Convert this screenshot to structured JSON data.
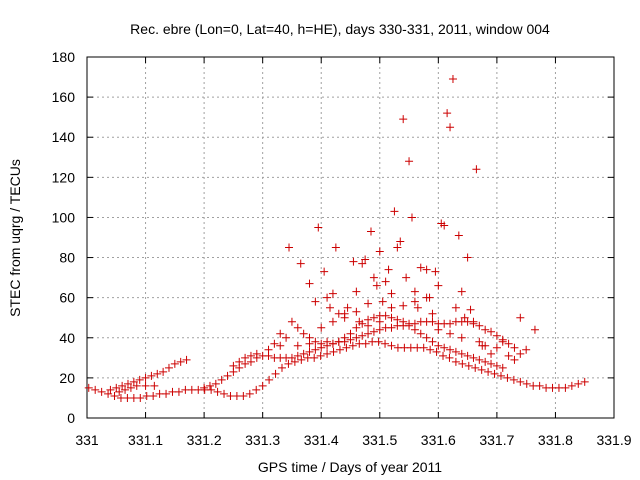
{
  "chart_data": {
    "type": "scatter",
    "title": "Rec. ebre (Lon=0, Lat=40, h=HE), days 330-331, 2011, window 004",
    "xlabel": "GPS time / Days of year 2011",
    "ylabel": "STEC from uqrg / TECUs",
    "xlim": [
      331,
      331.9
    ],
    "ylim": [
      0,
      180
    ],
    "xticks": [
      "331",
      "331.1",
      "331.2",
      "331.3",
      "331.4",
      "331.5",
      "331.6",
      "331.7",
      "331.8",
      "331.9"
    ],
    "yticks": [
      "0",
      "20",
      "40",
      "60",
      "80",
      "100",
      "120",
      "140",
      "160",
      "180"
    ],
    "grid": true,
    "marker": "plus",
    "marker_color": "#cc0000",
    "points": [
      [
        331.003,
        15
      ],
      [
        331.014,
        14
      ],
      [
        331.025,
        13
      ],
      [
        331.036,
        12
      ],
      [
        331.047,
        11
      ],
      [
        331.058,
        10
      ],
      [
        331.069,
        10
      ],
      [
        331.08,
        10
      ],
      [
        331.091,
        10
      ],
      [
        331.102,
        11
      ],
      [
        331.113,
        11
      ],
      [
        331.124,
        12
      ],
      [
        331.135,
        12
      ],
      [
        331.146,
        13
      ],
      [
        331.157,
        13
      ],
      [
        331.168,
        14
      ],
      [
        331.179,
        14
      ],
      [
        331.19,
        14
      ],
      [
        331.201,
        14
      ],
      [
        331.212,
        14
      ],
      [
        331.223,
        13
      ],
      [
        331.234,
        12
      ],
      [
        331.245,
        11
      ],
      [
        331.256,
        11
      ],
      [
        331.267,
        11
      ],
      [
        331.278,
        12
      ],
      [
        331.289,
        14
      ],
      [
        331.3,
        16
      ],
      [
        331.311,
        19
      ],
      [
        331.322,
        22
      ],
      [
        331.333,
        25
      ],
      [
        331.344,
        27
      ],
      [
        331.355,
        28
      ],
      [
        331.366,
        29
      ],
      [
        331.377,
        30
      ],
      [
        331.388,
        30
      ],
      [
        331.399,
        31
      ],
      [
        331.41,
        32
      ],
      [
        331.421,
        33
      ],
      [
        331.432,
        34
      ],
      [
        331.443,
        35
      ],
      [
        331.454,
        36
      ],
      [
        331.465,
        37
      ],
      [
        331.476,
        37
      ],
      [
        331.487,
        38
      ],
      [
        331.498,
        38
      ],
      [
        331.509,
        37
      ],
      [
        331.52,
        36
      ],
      [
        331.531,
        35
      ],
      [
        331.542,
        35
      ],
      [
        331.553,
        35
      ],
      [
        331.564,
        35
      ],
      [
        331.575,
        35
      ],
      [
        331.586,
        34
      ],
      [
        331.597,
        33
      ],
      [
        331.608,
        31
      ],
      [
        331.619,
        30
      ],
      [
        331.63,
        28
      ],
      [
        331.641,
        27
      ],
      [
        331.652,
        26
      ],
      [
        331.663,
        25
      ],
      [
        331.674,
        24
      ],
      [
        331.685,
        23
      ],
      [
        331.696,
        22
      ],
      [
        331.707,
        21
      ],
      [
        331.718,
        20
      ],
      [
        331.729,
        19
      ],
      [
        331.74,
        18
      ],
      [
        331.751,
        17
      ],
      [
        331.762,
        16
      ],
      [
        331.773,
        16
      ],
      [
        331.784,
        15
      ],
      [
        331.795,
        15
      ],
      [
        331.806,
        15
      ],
      [
        331.817,
        15
      ],
      [
        331.828,
        16
      ],
      [
        331.839,
        17
      ],
      [
        331.85,
        18
      ],
      [
        331.04,
        14
      ],
      [
        331.05,
        15
      ],
      [
        331.06,
        16
      ],
      [
        331.07,
        17
      ],
      [
        331.08,
        18
      ],
      [
        331.09,
        19
      ],
      [
        331.1,
        20
      ],
      [
        331.11,
        21
      ],
      [
        331.12,
        22
      ],
      [
        331.13,
        23
      ],
      [
        331.14,
        25
      ],
      [
        331.15,
        27
      ],
      [
        331.16,
        28
      ],
      [
        331.17,
        29
      ],
      [
        331.055,
        13
      ],
      [
        331.065,
        14
      ],
      [
        331.075,
        15
      ],
      [
        331.085,
        16
      ],
      [
        331.1,
        16
      ],
      [
        331.115,
        16
      ],
      [
        331.2,
        15
      ],
      [
        331.21,
        16
      ],
      [
        331.22,
        17
      ],
      [
        331.23,
        19
      ],
      [
        331.24,
        21
      ],
      [
        331.25,
        23
      ],
      [
        331.26,
        25
      ],
      [
        331.27,
        27
      ],
      [
        331.28,
        28
      ],
      [
        331.29,
        30
      ],
      [
        331.3,
        31
      ],
      [
        331.31,
        31
      ],
      [
        331.32,
        30
      ],
      [
        331.33,
        30
      ],
      [
        331.34,
        30
      ],
      [
        331.35,
        30
      ],
      [
        331.36,
        31
      ],
      [
        331.37,
        32
      ],
      [
        331.38,
        33
      ],
      [
        331.39,
        34
      ],
      [
        331.4,
        35
      ],
      [
        331.41,
        36
      ],
      [
        331.42,
        37
      ],
      [
        331.43,
        38
      ],
      [
        331.44,
        38
      ],
      [
        331.45,
        39
      ],
      [
        331.46,
        40
      ],
      [
        331.47,
        41
      ],
      [
        331.48,
        42
      ],
      [
        331.49,
        43
      ],
      [
        331.5,
        44
      ],
      [
        331.51,
        45
      ],
      [
        331.52,
        45
      ],
      [
        331.53,
        46
      ],
      [
        331.54,
        46
      ],
      [
        331.55,
        47
      ],
      [
        331.56,
        47
      ],
      [
        331.57,
        48
      ],
      [
        331.58,
        48
      ],
      [
        331.59,
        48
      ],
      [
        331.6,
        47
      ],
      [
        331.61,
        47
      ],
      [
        331.62,
        47
      ],
      [
        331.63,
        48
      ],
      [
        331.64,
        48
      ],
      [
        331.65,
        48
      ],
      [
        331.66,
        47
      ],
      [
        331.67,
        46
      ],
      [
        331.68,
        44
      ],
      [
        331.69,
        43
      ],
      [
        331.7,
        41
      ],
      [
        331.71,
        39
      ],
      [
        331.72,
        37
      ],
      [
        331.73,
        35
      ],
      [
        331.74,
        32
      ],
      [
        331.25,
        26
      ],
      [
        331.26,
        28
      ],
      [
        331.27,
        30
      ],
      [
        331.28,
        31
      ],
      [
        331.29,
        32
      ],
      [
        331.31,
        34
      ],
      [
        331.33,
        36
      ],
      [
        331.35,
        48
      ],
      [
        331.36,
        45
      ],
      [
        331.37,
        42
      ],
      [
        331.38,
        40
      ],
      [
        331.39,
        38
      ],
      [
        331.4,
        37
      ],
      [
        331.41,
        38
      ],
      [
        331.42,
        37
      ],
      [
        331.43,
        38
      ],
      [
        331.44,
        40
      ],
      [
        331.45,
        42
      ],
      [
        331.46,
        45
      ],
      [
        331.47,
        47
      ],
      [
        331.48,
        49
      ],
      [
        331.49,
        50
      ],
      [
        331.5,
        51
      ],
      [
        331.51,
        51
      ],
      [
        331.52,
        50
      ],
      [
        331.53,
        49
      ],
      [
        331.54,
        48
      ],
      [
        331.55,
        46
      ],
      [
        331.56,
        44
      ],
      [
        331.57,
        42
      ],
      [
        331.58,
        40
      ],
      [
        331.59,
        38
      ],
      [
        331.6,
        36
      ],
      [
        331.61,
        35
      ],
      [
        331.62,
        34
      ],
      [
        331.63,
        33
      ],
      [
        331.64,
        32
      ],
      [
        331.65,
        31
      ],
      [
        331.66,
        30
      ],
      [
        331.67,
        29
      ],
      [
        331.68,
        28
      ],
      [
        331.69,
        27
      ],
      [
        331.7,
        26
      ],
      [
        331.71,
        25
      ],
      [
        331.32,
        37
      ],
      [
        331.33,
        42
      ],
      [
        331.34,
        40
      ],
      [
        331.345,
        85
      ],
      [
        331.365,
        77
      ],
      [
        331.38,
        67
      ],
      [
        331.39,
        58
      ],
      [
        331.395,
        95
      ],
      [
        331.405,
        73
      ],
      [
        331.41,
        60
      ],
      [
        331.415,
        55
      ],
      [
        331.42,
        62
      ],
      [
        331.425,
        85
      ],
      [
        331.43,
        52
      ],
      [
        331.44,
        50
      ],
      [
        331.445,
        55
      ],
      [
        331.455,
        78
      ],
      [
        331.46,
        63
      ],
      [
        331.465,
        48
      ],
      [
        331.47,
        77
      ],
      [
        331.475,
        79
      ],
      [
        331.48,
        57
      ],
      [
        331.485,
        93
      ],
      [
        331.49,
        70
      ],
      [
        331.495,
        66
      ],
      [
        331.5,
        83
      ],
      [
        331.505,
        58
      ],
      [
        331.51,
        68
      ],
      [
        331.515,
        74
      ],
      [
        331.52,
        62
      ],
      [
        331.525,
        103
      ],
      [
        331.53,
        85
      ],
      [
        331.535,
        88
      ],
      [
        331.54,
        149
      ],
      [
        331.545,
        70
      ],
      [
        331.55,
        128
      ],
      [
        331.555,
        100
      ],
      [
        331.56,
        63
      ],
      [
        331.565,
        55
      ],
      [
        331.57,
        75
      ],
      [
        331.58,
        74
      ],
      [
        331.585,
        60
      ],
      [
        331.59,
        52
      ],
      [
        331.595,
        73
      ],
      [
        331.6,
        66
      ],
      [
        331.605,
        97
      ],
      [
        331.61,
        96
      ],
      [
        331.615,
        152
      ],
      [
        331.62,
        145
      ],
      [
        331.625,
        169
      ],
      [
        331.63,
        55
      ],
      [
        331.635,
        91
      ],
      [
        331.64,
        63
      ],
      [
        331.645,
        50
      ],
      [
        331.65,
        80
      ],
      [
        331.655,
        54
      ],
      [
        331.66,
        48
      ],
      [
        331.665,
        124
      ],
      [
        331.67,
        38
      ],
      [
        331.675,
        36
      ],
      [
        331.68,
        36
      ],
      [
        331.69,
        32
      ],
      [
        331.7,
        35
      ],
      [
        331.71,
        38
      ],
      [
        331.72,
        31
      ],
      [
        331.73,
        29
      ],
      [
        331.74,
        50
      ],
      [
        331.75,
        34
      ],
      [
        331.765,
        44
      ],
      [
        331.36,
        36
      ],
      [
        331.38,
        37
      ],
      [
        331.4,
        45
      ],
      [
        331.42,
        48
      ],
      [
        331.44,
        52
      ],
      [
        331.46,
        53
      ],
      [
        331.48,
        46
      ],
      [
        331.5,
        48
      ],
      [
        331.52,
        55
      ],
      [
        331.54,
        56
      ],
      [
        331.56,
        58
      ],
      [
        331.58,
        60
      ],
      [
        331.6,
        44
      ],
      [
        331.62,
        42
      ],
      [
        331.64,
        40
      ]
    ]
  }
}
